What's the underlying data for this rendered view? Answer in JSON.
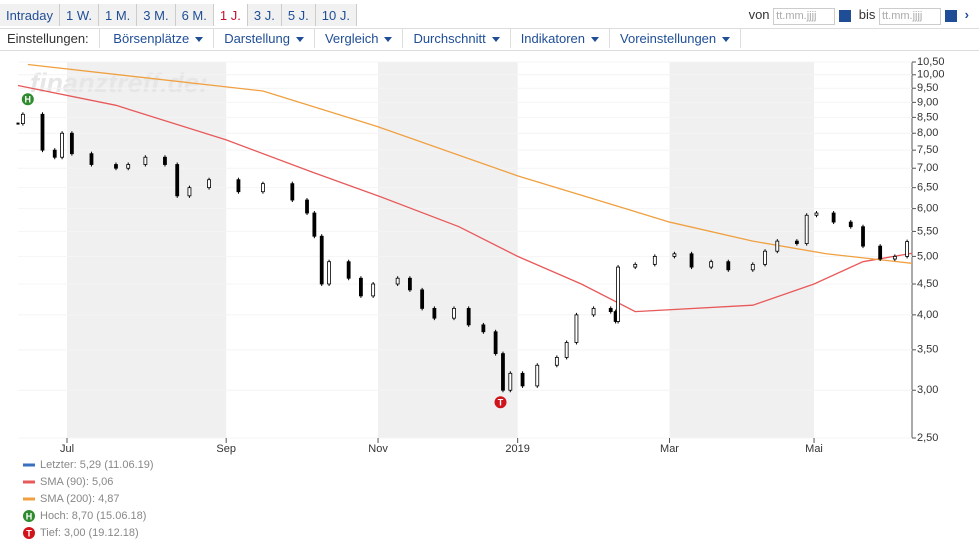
{
  "toolbar": {
    "tabs": [
      "Intraday",
      "1 W.",
      "1 M.",
      "3 M.",
      "6 M.",
      "1 J.",
      "3 J.",
      "5 J.",
      "10 J."
    ],
    "from": "von",
    "to": "bis",
    "placeholder": "tt.mm.jjjj",
    "settings_label": "Einstellungen:",
    "menus": [
      "Börsenplätze",
      "Darstellung",
      "Vergleich",
      "Durchschnitt",
      "Indikatoren",
      "Voreinstellungen"
    ]
  },
  "chart_data": {
    "type": "candlestick",
    "watermark": "finanztreff.de:",
    "log_scale": true,
    "xlim": [
      0,
      365
    ],
    "ylim": [
      2.5,
      10.5
    ],
    "xticks": [
      {
        "value": 20,
        "label": "Jul"
      },
      {
        "value": 85,
        "label": "Sep"
      },
      {
        "value": 147,
        "label": "Nov"
      },
      {
        "value": 204,
        "label": "2019"
      },
      {
        "value": 266,
        "label": "Mar"
      },
      {
        "value": 325,
        "label": "Mai"
      }
    ],
    "yticks": [
      {
        "value": 2.5,
        "label": "2,50"
      },
      {
        "value": 3,
        "label": "3,00"
      },
      {
        "value": 3.5,
        "label": "3,50"
      },
      {
        "value": 4,
        "label": "4,00"
      },
      {
        "value": 4.5,
        "label": "4,50"
      },
      {
        "value": 5,
        "label": "5,00"
      },
      {
        "value": 5.5,
        "label": "5,50"
      },
      {
        "value": 6,
        "label": "6,00"
      },
      {
        "value": 6.5,
        "label": "6,50"
      },
      {
        "value": 7,
        "label": "7,00"
      },
      {
        "value": 7.5,
        "label": "7,50"
      },
      {
        "value": 8,
        "label": "8,00"
      },
      {
        "value": 8.5,
        "label": "8,50"
      },
      {
        "value": 9,
        "label": "9,00"
      },
      {
        "value": 9.5,
        "label": "9,50"
      },
      {
        "value": 10,
        "label": "10,00"
      },
      {
        "value": 10.5,
        "label": "10,50"
      }
    ],
    "series": [
      {
        "name": "Letzter: 5,29 (11.06.19)",
        "color": "#3a6fbf",
        "x": [
          0,
          2,
          10,
          15,
          18,
          22,
          30,
          40,
          45,
          52,
          60,
          65,
          70,
          78,
          90,
          100,
          112,
          118,
          121,
          124,
          127,
          135,
          140,
          145,
          155,
          160,
          165,
          170,
          178,
          184,
          190,
          195,
          198,
          201,
          206,
          212,
          220,
          224,
          228,
          235,
          242,
          244,
          245,
          252,
          260,
          268,
          275,
          283,
          290,
          300,
          305,
          310,
          318,
          322,
          326,
          333,
          340,
          345,
          352,
          358,
          363
        ],
        "values": [
          8.3,
          8.6,
          7.5,
          7.3,
          8.0,
          7.4,
          7.1,
          7.0,
          7.1,
          7.3,
          7.1,
          6.3,
          6.5,
          6.7,
          6.4,
          6.6,
          6.2,
          5.9,
          5.4,
          4.5,
          4.9,
          4.6,
          4.3,
          4.5,
          4.6,
          4.4,
          4.1,
          3.95,
          4.1,
          3.85,
          3.75,
          3.45,
          3.0,
          3.2,
          3.05,
          3.3,
          3.4,
          3.6,
          4.0,
          4.1,
          4.05,
          3.9,
          4.8,
          4.85,
          5.0,
          5.05,
          4.8,
          4.9,
          4.75,
          4.85,
          5.1,
          5.3,
          5.25,
          5.85,
          5.9,
          5.7,
          5.6,
          5.2,
          4.95,
          5.0,
          5.29
        ]
      },
      {
        "name": "SMA (90): 5,06",
        "color": "#e8595a",
        "x": [
          0,
          40,
          85,
          120,
          147,
          180,
          204,
          230,
          252,
          300,
          325,
          345,
          365
        ],
        "values": [
          9.6,
          8.9,
          7.8,
          6.9,
          6.3,
          5.6,
          5.0,
          4.5,
          4.05,
          4.15,
          4.5,
          4.9,
          5.06
        ]
      },
      {
        "name": "SMA (200): 4,87",
        "color": "#f0a040",
        "x": [
          4,
          100,
          147,
          204,
          266,
          300,
          330,
          365
        ],
        "values": [
          10.4,
          9.4,
          8.2,
          6.8,
          5.7,
          5.3,
          5.05,
          4.87
        ]
      }
    ],
    "markers": [
      {
        "label": "H",
        "text": "Hoch: 8,70 (15.06.18)",
        "x": 4,
        "value": 8.7,
        "color": "#2e8b2e"
      },
      {
        "label": "T",
        "text": "Tief: 3,00 (19.12.18)",
        "x": 197,
        "value": 3.0,
        "color": "#d0141c"
      }
    ]
  }
}
